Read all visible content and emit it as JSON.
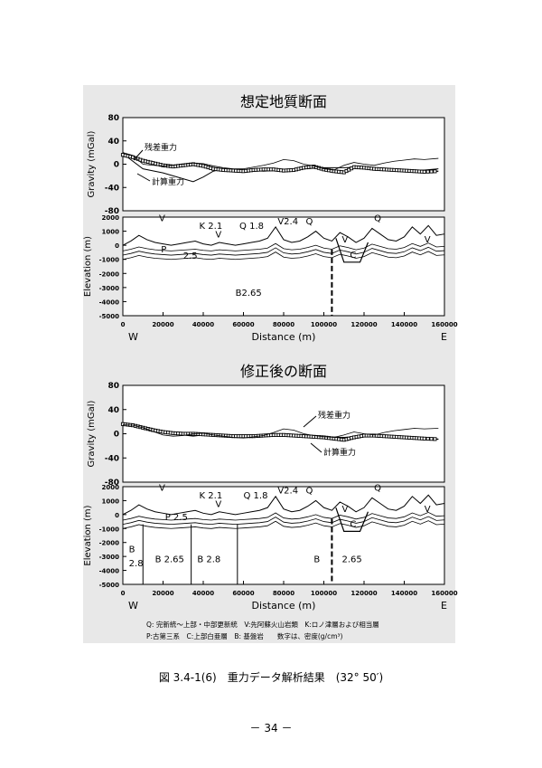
{
  "panels": [
    {
      "title": "想定地質断面",
      "gravity_ylabel": "Gravity (mGal)",
      "elevation_ylabel": "Elevation (m)",
      "gravity_legend": {
        "residual": "残差重力",
        "computed": "計算重力"
      },
      "geology_labels": [
        {
          "text": "V",
          "x": 18000,
          "y": 1700
        },
        {
          "text": "K 2.1",
          "x": 38000,
          "y": 1150
        },
        {
          "text": "V",
          "x": 46000,
          "y": 550
        },
        {
          "text": "Q 1.8",
          "x": 58000,
          "y": 1150
        },
        {
          "text": "V2.4",
          "x": 77000,
          "y": 1500
        },
        {
          "text": "Q",
          "x": 91000,
          "y": 1500
        },
        {
          "text": "Q",
          "x": 125000,
          "y": 1700
        },
        {
          "text": "V",
          "x": 109000,
          "y": 200
        },
        {
          "text": "V",
          "x": 150000,
          "y": 200
        },
        {
          "text": "C",
          "x": 113000,
          "y": -900
        },
        {
          "text": "P",
          "x": 19000,
          "y": -500
        },
        {
          "text": "2.5",
          "x": 30000,
          "y": -950
        },
        {
          "text": "B2.65",
          "x": 56000,
          "y": -3600
        }
      ]
    },
    {
      "title": "修正後の断面",
      "gravity_ylabel": "Gravity (mGal)",
      "elevation_ylabel": "Elevation (m)",
      "gravity_legend": {
        "residual": "残差重力",
        "computed": "計算重力"
      },
      "geology_labels": [
        {
          "text": "V",
          "x": 18000,
          "y": 1700
        },
        {
          "text": "K 2.1",
          "x": 38000,
          "y": 1150
        },
        {
          "text": "V",
          "x": 46000,
          "y": 550
        },
        {
          "text": "Q 1.8",
          "x": 60000,
          "y": 1150
        },
        {
          "text": "V2.4",
          "x": 77000,
          "y": 1500
        },
        {
          "text": "Q",
          "x": 91000,
          "y": 1500
        },
        {
          "text": "Q",
          "x": 125000,
          "y": 1700
        },
        {
          "text": "V",
          "x": 109000,
          "y": 200
        },
        {
          "text": "V",
          "x": 150000,
          "y": 200
        },
        {
          "text": "C",
          "x": 113000,
          "y": -900
        },
        {
          "text": "P 2.5",
          "x": 21000,
          "y": -400
        },
        {
          "text": "B",
          "x": 3000,
          "y": -2700
        },
        {
          "text": "2.8",
          "x": 3000,
          "y": -3700
        },
        {
          "text": "B 2.65",
          "x": 16000,
          "y": -3400
        },
        {
          "text": "B 2.8",
          "x": 37000,
          "y": -3400
        },
        {
          "text": "B",
          "x": 95000,
          "y": -3400
        },
        {
          "text": "2.65",
          "x": 109000,
          "y": -3400
        }
      ]
    }
  ],
  "legend_notes": [
    "Q: 完新統～上部・中部更新統　V:先阿蘇火山岩類　K:ロノ津層および相当層",
    "P:古第三系　C:上部白亜層　B: 基盤岩　　数字は、密度(g/cm³)"
  ],
  "figure_caption": "図 3.4-1(6)　重力データ解析結果　(32° 50′)",
  "page_number": "－ 34 －",
  "chart_data": [
    {
      "type": "line",
      "title": "想定地質断面",
      "xlabel": "Distance (m)",
      "ylabel": "Gravity (mGal)",
      "xlim": [
        0,
        160000
      ],
      "ylim": [
        -80,
        80
      ],
      "x_ticks": [
        0,
        20000,
        40000,
        60000,
        80000,
        100000,
        120000,
        140000,
        160000
      ],
      "y_ticks": [
        80,
        40,
        0,
        -40,
        -80
      ],
      "x_end_labels": [
        "W",
        "E"
      ],
      "series": [
        {
          "name": "残差重力",
          "x": [
            0,
            5000,
            10000,
            15000,
            20000,
            25000,
            30000,
            35000,
            40000,
            45000,
            50000,
            55000,
            60000,
            65000,
            70000,
            75000,
            80000,
            85000,
            90000,
            95000,
            100000,
            105000,
            110000,
            115000,
            120000,
            125000,
            130000,
            135000,
            140000,
            145000,
            150000,
            157000
          ],
          "y": [
            20,
            15,
            0,
            -2,
            -3,
            -2,
            0,
            2,
            1,
            -3,
            -6,
            -8,
            -8,
            -5,
            -2,
            2,
            8,
            6,
            0,
            -3,
            -8,
            -10,
            -2,
            3,
            0,
            -2,
            2,
            5,
            7,
            9,
            8,
            10
          ]
        },
        {
          "name": "計算重力",
          "x": [
            0,
            5000,
            10000,
            15000,
            20000,
            25000,
            30000,
            35000,
            40000,
            45000,
            50000,
            55000,
            60000,
            65000,
            70000,
            75000,
            80000,
            85000,
            90000,
            95000,
            100000,
            105000,
            110000,
            115000,
            120000,
            125000,
            130000,
            135000,
            140000,
            145000,
            150000,
            157000
          ],
          "y": [
            16,
            12,
            6,
            2,
            -2,
            -4,
            -2,
            0,
            -3,
            -8,
            -10,
            -11,
            -12,
            -10,
            -9,
            -9,
            -11,
            -10,
            -6,
            -4,
            -9,
            -12,
            -14,
            -5,
            -6,
            -8,
            -9,
            -10,
            -11,
            -12,
            -13,
            -12
          ]
        },
        {
          "name": "",
          "x": [
            0,
            10000,
            20000,
            30000,
            35000,
            40000,
            45000,
            50000,
            60000,
            70000,
            80000,
            90000,
            100000,
            110000,
            120000,
            130000,
            140000,
            150000,
            157000
          ],
          "y": [
            18,
            -8,
            -15,
            -25,
            -30,
            -22,
            -12,
            -8,
            -10,
            -12,
            -10,
            -8,
            -6,
            -6,
            -5,
            -8,
            -10,
            -10,
            -8
          ]
        }
      ]
    },
    {
      "type": "line",
      "title": "想定地質断面",
      "xlabel": "Distance (m)",
      "ylabel": "Elevation (m)",
      "xlim": [
        0,
        160000
      ],
      "ylim": [
        -5000,
        2000
      ],
      "x_ticks": [
        0,
        20000,
        40000,
        60000,
        80000,
        100000,
        120000,
        140000,
        160000
      ],
      "y_ticks": [
        2000,
        1000,
        0,
        -1000,
        -2000,
        -3000,
        -4000,
        -5000
      ],
      "series": [
        {
          "name": "",
          "x": [
            0,
            4000,
            8000,
            12000,
            16000,
            20000,
            24000,
            28000,
            32000,
            36000,
            40000,
            44000,
            48000,
            52000,
            56000,
            60000,
            64000,
            68000,
            72000,
            76000,
            80000,
            84000,
            88000,
            92000,
            96000,
            100000,
            104000,
            108000,
            112000,
            116000,
            120000,
            124000,
            128000,
            132000,
            136000,
            140000,
            144000,
            148000,
            152000,
            156000,
            160000
          ],
          "y": [
            0,
            300,
            700,
            400,
            200,
            100,
            0,
            100,
            200,
            300,
            100,
            0,
            200,
            100,
            0,
            100,
            200,
            300,
            500,
            1300,
            400,
            200,
            300,
            600,
            1000,
            500,
            300,
            900,
            600,
            200,
            500,
            1200,
            800,
            400,
            300,
            600,
            1300,
            800,
            1400,
            700,
            800
          ]
        },
        {
          "name": "",
          "x": [
            104000,
            104000
          ],
          "y": [
            -300,
            -5000
          ]
        }
      ]
    },
    {
      "type": "line",
      "title": "修正後の断面",
      "xlabel": "Distance (m)",
      "ylabel": "Gravity (mGal)",
      "xlim": [
        0,
        160000
      ],
      "ylim": [
        -80,
        80
      ],
      "x_ticks": [
        0,
        20000,
        40000,
        60000,
        80000,
        100000,
        120000,
        140000,
        160000
      ],
      "y_ticks": [
        80,
        40,
        0,
        -40,
        -80
      ],
      "x_end_labels": [
        "W",
        "E"
      ],
      "series": [
        {
          "name": "残差重力",
          "x": [
            0,
            5000,
            10000,
            15000,
            20000,
            25000,
            30000,
            35000,
            40000,
            45000,
            50000,
            55000,
            60000,
            65000,
            70000,
            75000,
            80000,
            85000,
            90000,
            95000,
            100000,
            105000,
            110000,
            115000,
            120000,
            125000,
            130000,
            135000,
            140000,
            145000,
            150000,
            157000
          ],
          "y": [
            15,
            14,
            10,
            4,
            -2,
            -4,
            -3,
            0,
            1,
            -2,
            -4,
            -6,
            -7,
            -5,
            -3,
            2,
            8,
            6,
            0,
            -3,
            -5,
            -6,
            -2,
            3,
            0,
            -2,
            2,
            5,
            7,
            9,
            8,
            9
          ]
        },
        {
          "name": "計算重力",
          "x": [
            0,
            5000,
            10000,
            15000,
            20000,
            25000,
            30000,
            35000,
            40000,
            45000,
            50000,
            55000,
            60000,
            65000,
            70000,
            75000,
            80000,
            85000,
            90000,
            95000,
            100000,
            105000,
            110000,
            115000,
            120000,
            125000,
            130000,
            135000,
            140000,
            145000,
            150000,
            157000
          ],
          "y": [
            16,
            14,
            10,
            6,
            3,
            1,
            0,
            0,
            -1,
            -2,
            -3,
            -4,
            -4,
            -4,
            -3,
            -2,
            -2,
            -3,
            -4,
            -5,
            -6,
            -8,
            -10,
            -6,
            -3,
            -3,
            -4,
            -5,
            -6,
            -7,
            -8,
            -9
          ]
        },
        {
          "name": "",
          "x": [
            0,
            10000,
            20000,
            30000,
            35000,
            40000,
            45000,
            50000,
            60000,
            70000,
            80000,
            90000,
            100000,
            110000,
            120000,
            130000,
            140000,
            150000,
            157000
          ],
          "y": [
            15,
            12,
            5,
            -2,
            -4,
            -2,
            0,
            -2,
            -4,
            -3,
            -2,
            -3,
            -5,
            -6,
            -4,
            -5,
            -6,
            -8,
            -9
          ]
        }
      ]
    },
    {
      "type": "line",
      "title": "修正後の断面",
      "xlabel": "Distance (m)",
      "ylabel": "Elevation (m)",
      "xlim": [
        0,
        160000
      ],
      "ylim": [
        -5000,
        2000
      ],
      "x_ticks": [
        0,
        20000,
        40000,
        60000,
        80000,
        100000,
        120000,
        140000,
        160000
      ],
      "y_ticks": [
        2000,
        1000,
        0,
        -1000,
        -2000,
        -3000,
        -4000,
        -5000
      ],
      "series": [
        {
          "name": "",
          "x": [
            0,
            4000,
            8000,
            12000,
            16000,
            20000,
            24000,
            28000,
            32000,
            36000,
            40000,
            44000,
            48000,
            52000,
            56000,
            60000,
            64000,
            68000,
            72000,
            76000,
            80000,
            84000,
            88000,
            92000,
            96000,
            100000,
            104000,
            108000,
            112000,
            116000,
            120000,
            124000,
            128000,
            132000,
            136000,
            140000,
            144000,
            148000,
            152000,
            156000,
            160000
          ],
          "y": [
            0,
            300,
            700,
            400,
            200,
            100,
            0,
            100,
            200,
            300,
            100,
            0,
            200,
            100,
            0,
            100,
            200,
            300,
            500,
            1300,
            400,
            200,
            300,
            600,
            1000,
            500,
            300,
            900,
            600,
            200,
            500,
            1200,
            800,
            400,
            300,
            600,
            1300,
            800,
            1400,
            700,
            800
          ]
        },
        {
          "name": "",
          "x": [
            104000,
            104000
          ],
          "y": [
            -300,
            -5000
          ]
        }
      ]
    }
  ]
}
